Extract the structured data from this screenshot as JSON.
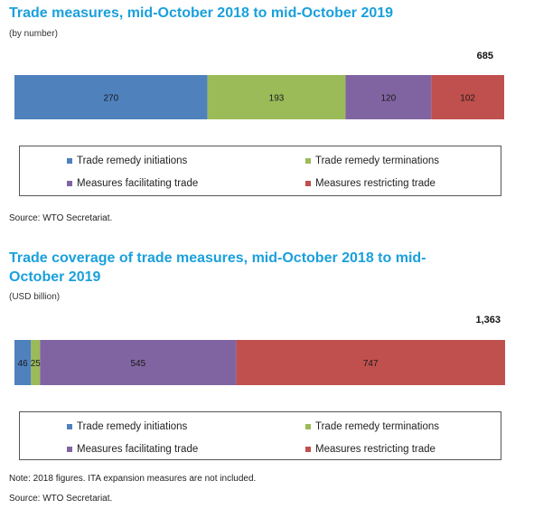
{
  "chart_data": [
    {
      "type": "bar",
      "orientation": "horizontal-stacked",
      "title": "Trade measures, mid-October 2018 to mid-October 2019",
      "subtitle": "(by number)",
      "total_label": "685",
      "series": [
        {
          "name": "Trade remedy initiations",
          "value": 270,
          "label": "270",
          "color": "#4f81bd"
        },
        {
          "name": "Trade remedy terminations",
          "value": 193,
          "label": "193",
          "color": "#9bbb59"
        },
        {
          "name": "Measures facilitating trade",
          "value": 120,
          "label": "120",
          "color": "#8064a2"
        },
        {
          "name": "Measures restricting trade",
          "value": 102,
          "label": "102",
          "color": "#c0504d"
        }
      ],
      "notes": [
        "Source: WTO Secretariat."
      ]
    },
    {
      "type": "bar",
      "orientation": "horizontal-stacked",
      "title": "Trade coverage of trade measures, mid-October 2018 to mid-October 2019",
      "title_lines": [
        "Trade coverage of trade measures, mid-October 2018 to mid-",
        "October 2019"
      ],
      "subtitle": "(USD billion)",
      "total_label": "1,363",
      "series": [
        {
          "name": "Trade remedy initiations",
          "value": 46,
          "label": "46",
          "color": "#4f81bd"
        },
        {
          "name": "Trade remedy terminations",
          "value": 25,
          "label": "25",
          "color": "#9bbb59"
        },
        {
          "name": "Measures facilitating trade",
          "value": 545,
          "label": "545",
          "color": "#8064a2"
        },
        {
          "name": "Measures restricting trade",
          "value": 747,
          "label": "747",
          "color": "#c0504d"
        }
      ],
      "notes": [
        "Note: 2018 figures. ITA expansion measures are not included.",
        "Source: WTO Secretariat."
      ]
    }
  ]
}
